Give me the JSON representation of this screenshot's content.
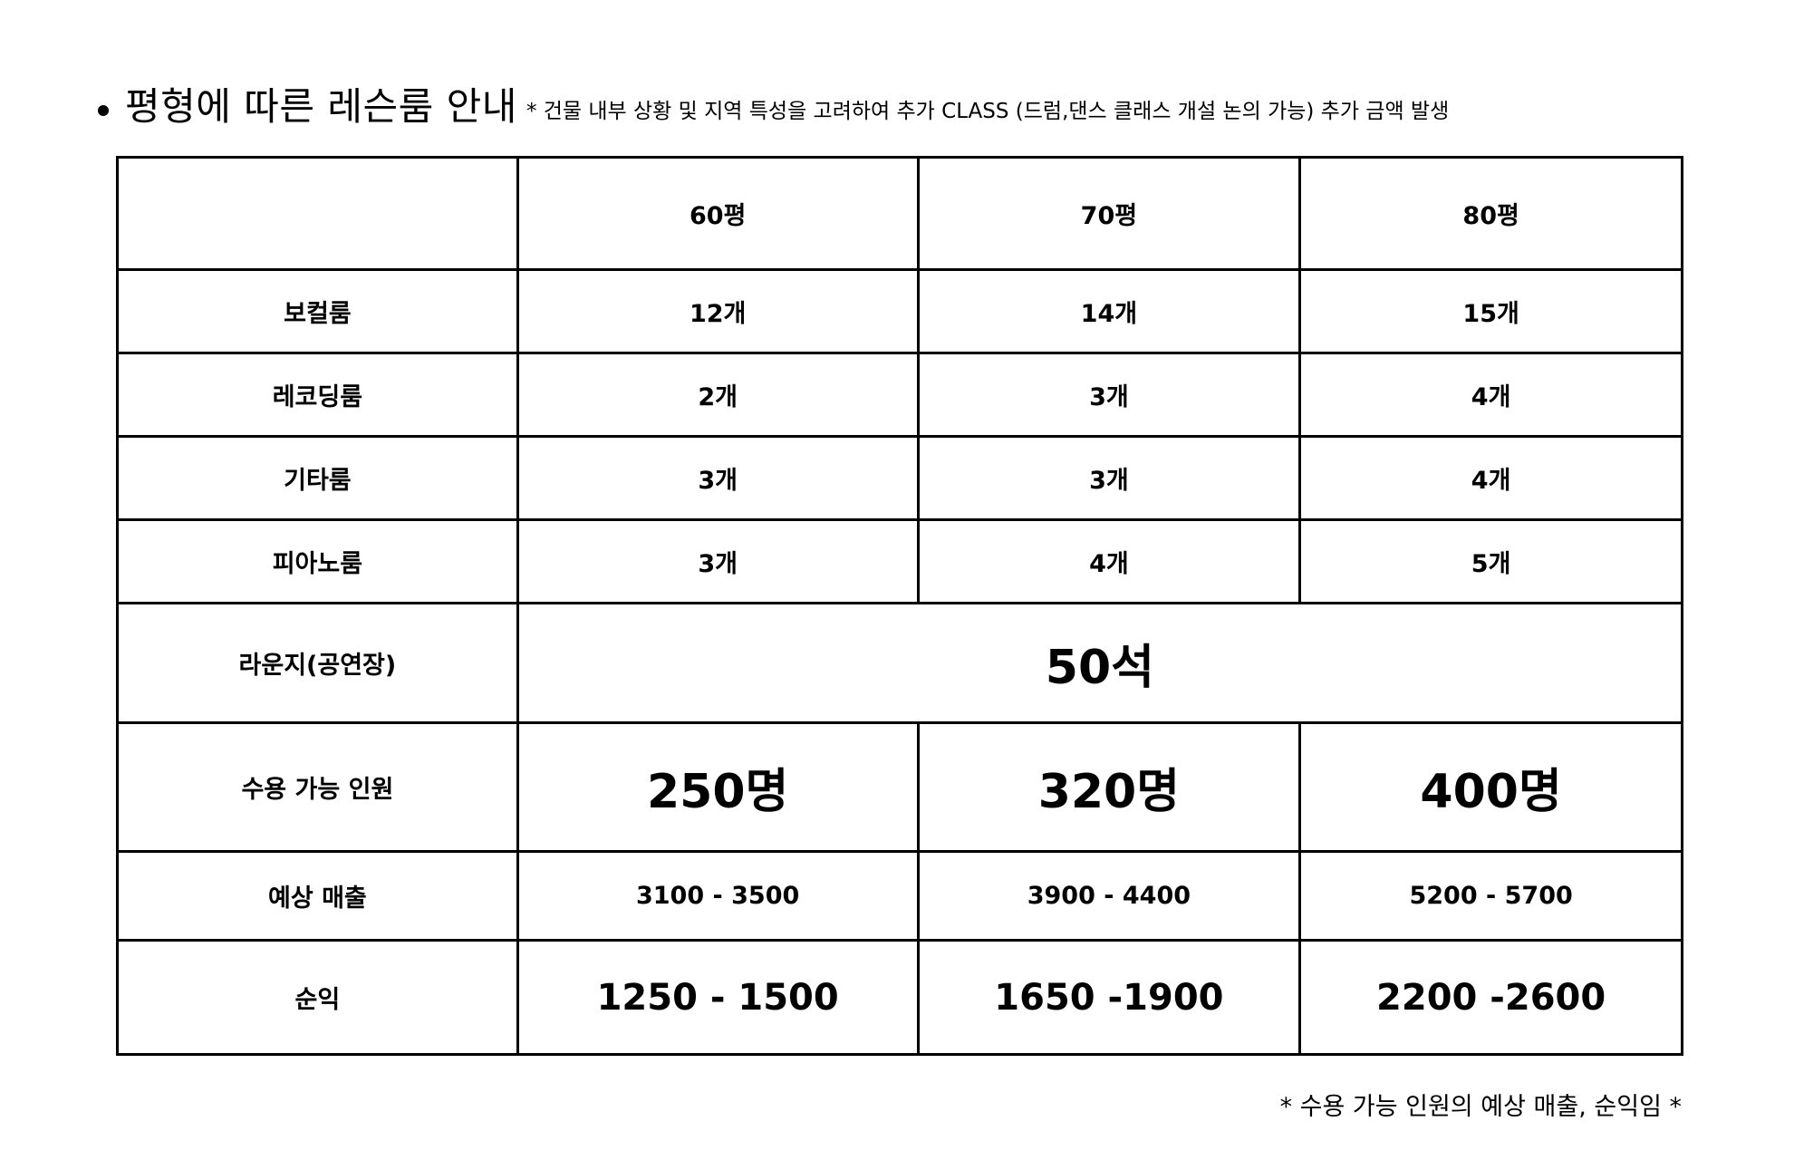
{
  "heading": {
    "title": "평형에 따른 레슨룸 안내",
    "note": "* 건물 내부 상황 및 지역 특성을 고려하여 추가 CLASS (드럼,댄스 클래스 개설 논의 가능) 추가 금액 발생"
  },
  "table": {
    "columns": [
      "",
      "60평",
      "70평",
      "80평"
    ],
    "rows": [
      {
        "label": "보컬룸",
        "values": [
          "12개",
          "14개",
          "15개"
        ]
      },
      {
        "label": "레코딩룸",
        "values": [
          "2개",
          "3개",
          "4개"
        ]
      },
      {
        "label": "기타룸",
        "values": [
          "3개",
          "3개",
          "4개"
        ]
      },
      {
        "label": "피아노룸",
        "values": [
          "3개",
          "4개",
          "5개"
        ]
      }
    ],
    "lounge": {
      "label": "라운지(공연장)",
      "value": "50석"
    },
    "capacity": {
      "label": "수용 가능 인원",
      "values": [
        "250명",
        "320명",
        "400명"
      ]
    },
    "sales": {
      "label": "예상 매출",
      "values": [
        "3100 - 3500",
        "3900 - 4400",
        "5200 - 5700"
      ]
    },
    "profit": {
      "label": "순익",
      "values": [
        "1250 - 1500",
        "1650 -1900",
        "2200 -2600"
      ]
    }
  },
  "footnote": "* 수용 가능 인원의 예상 매출, 순익임 *"
}
